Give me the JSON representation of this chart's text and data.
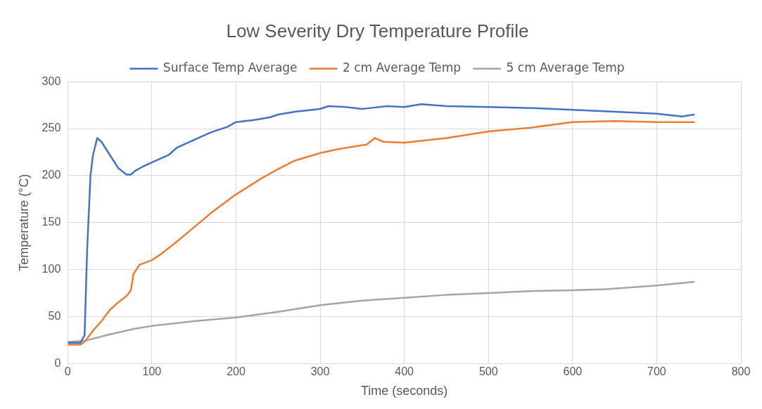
{
  "chart_data": {
    "type": "line",
    "title": "Low Severity Dry Temperature Profile",
    "xlabel": "Time (seconds)",
    "ylabel": "Temperature (°C)",
    "xlim": [
      0,
      800
    ],
    "xticks": [
      0,
      100,
      200,
      300,
      400,
      500,
      600,
      700,
      800
    ],
    "ylim": [
      0,
      300
    ],
    "yticks": [
      0,
      50,
      100,
      150,
      200,
      250,
      300
    ],
    "grid": true,
    "legend": "top",
    "marker": "none",
    "line_style": "solid",
    "series": [
      {
        "name": "Surface Temp Average",
        "color": "#4472c4",
        "x": [
          0,
          15,
          20,
          23,
          27,
          30,
          35,
          40,
          50,
          60,
          70,
          75,
          80,
          90,
          100,
          120,
          130,
          150,
          170,
          190,
          200,
          220,
          240,
          250,
          270,
          300,
          310,
          330,
          350,
          360,
          380,
          400,
          420,
          450,
          500,
          550,
          600,
          650,
          700,
          730,
          745
        ],
        "values": [
          22,
          22,
          30,
          120,
          200,
          222,
          240,
          236,
          222,
          208,
          201,
          201,
          205,
          210,
          214,
          222,
          230,
          238,
          246,
          252,
          257,
          259,
          262,
          265,
          268,
          271,
          274,
          273,
          271,
          272,
          274,
          273,
          276,
          274,
          273,
          272,
          270,
          268,
          266,
          263,
          265
        ]
      },
      {
        "name": "2 cm Average Temp",
        "color": "#ed7d31",
        "x": [
          0,
          15,
          20,
          30,
          40,
          50,
          60,
          70,
          75,
          78,
          85,
          100,
          110,
          130,
          150,
          170,
          200,
          230,
          250,
          270,
          300,
          320,
          340,
          355,
          365,
          375,
          400,
          450,
          500,
          550,
          600,
          650,
          700,
          745
        ],
        "values": [
          20,
          20,
          23,
          35,
          45,
          57,
          65,
          72,
          78,
          95,
          105,
          110,
          116,
          130,
          145,
          160,
          180,
          197,
          207,
          216,
          224,
          228,
          231,
          233,
          240,
          236,
          235,
          240,
          247,
          251,
          257,
          258,
          257,
          257
        ]
      },
      {
        "name": "5 cm Average Temp",
        "color": "#a5a5a5",
        "x": [
          0,
          20,
          50,
          80,
          100,
          150,
          200,
          250,
          300,
          350,
          400,
          450,
          500,
          550,
          600,
          640,
          700,
          745
        ],
        "values": [
          23,
          24,
          31,
          37,
          40,
          45,
          49,
          55,
          62,
          67,
          70,
          73,
          75,
          77,
          78,
          79,
          83,
          87
        ]
      }
    ]
  }
}
